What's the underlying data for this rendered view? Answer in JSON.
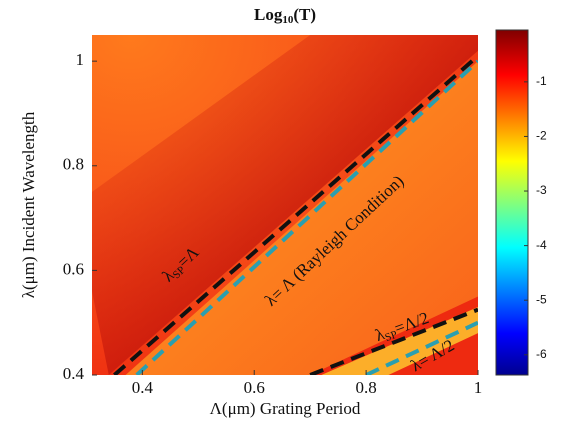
{
  "chart_data": {
    "type": "heatmap",
    "title_parts": [
      "Log",
      "10",
      "(T)"
    ],
    "x_label": "Λ(μm) Grating Period",
    "y_label": "λ(μm) Incident Wavelength",
    "xlim": [
      0.31,
      1.0
    ],
    "xticks": [
      0.4,
      0.6,
      0.8,
      1
    ],
    "ylim": [
      0.4,
      1.05
    ],
    "yticks": [
      0.4,
      0.6,
      0.8,
      1
    ],
    "clim": [
      -6.37,
      -0.05
    ],
    "cticks": [
      -1,
      -2,
      -3,
      -4,
      -5,
      -6
    ],
    "colormap": "jet",
    "lines": [
      {
        "color": "#111111",
        "x": [
          0.35,
          1.0
        ],
        "values": [
          0.4,
          1.01
        ]
      },
      {
        "color": "#2a9fb0",
        "x": [
          0.39,
          1.0
        ],
        "values": [
          0.4,
          1.0
        ]
      },
      {
        "color": "#111111",
        "x": [
          0.7,
          1.0
        ],
        "values": [
          0.4,
          0.525
        ]
      },
      {
        "color": "#2a9fb0",
        "x": [
          0.8,
          1.0
        ],
        "values": [
          0.4,
          0.5
        ]
      }
    ],
    "annotations": [
      {
        "parts": [
          "λ",
          "SP",
          "=Λ"
        ]
      },
      {
        "parts": [
          "λ= Λ  (Rayleigh Condition)"
        ]
      },
      {
        "parts": [
          "λ",
          "SP",
          "=Λ/2"
        ]
      },
      {
        "parts": [
          "λ= Λ/2"
        ]
      }
    ]
  }
}
